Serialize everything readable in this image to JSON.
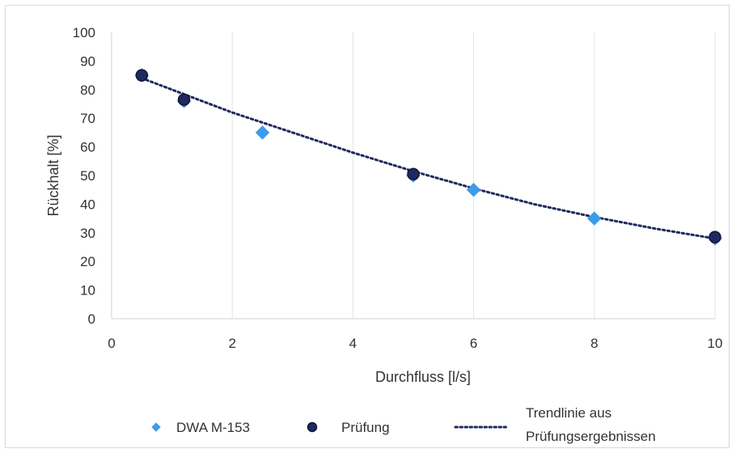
{
  "chart_data": {
    "type": "scatter",
    "xlabel": "Durchfluss [l/s]",
    "ylabel": "Rückhalt [%]",
    "xlim": [
      0,
      10
    ],
    "ylim": [
      0,
      100
    ],
    "x_ticks": [
      "0",
      "2",
      "4",
      "6",
      "8",
      "10"
    ],
    "y_ticks": [
      "0",
      "10",
      "20",
      "30",
      "40",
      "50",
      "60",
      "70",
      "80",
      "90",
      "100"
    ],
    "grid": "vertical",
    "legend_position": "bottom",
    "series": [
      {
        "name": "DWA M-153",
        "marker": "diamond",
        "color": "#3d9be9",
        "points": [
          {
            "x": 0.5,
            "y": 85
          },
          {
            "x": 1.2,
            "y": 76
          },
          {
            "x": 2.5,
            "y": 65
          },
          {
            "x": 5,
            "y": 50
          },
          {
            "x": 6,
            "y": 45
          },
          {
            "x": 8,
            "y": 35
          },
          {
            "x": 10,
            "y": 28
          }
        ]
      },
      {
        "name": "Prüfung",
        "marker": "circle",
        "color": "#1f2a5e",
        "points": [
          {
            "x": 0.5,
            "y": 85
          },
          {
            "x": 1.2,
            "y": 76.5
          },
          {
            "x": 5,
            "y": 50.5
          },
          {
            "x": 10,
            "y": 28.5
          }
        ]
      }
    ],
    "trendline": {
      "name": "Trendlinie aus Prüfungsergebnissen",
      "color": "#1f2a5e",
      "style": "dotted",
      "points": [
        {
          "x": 0.5,
          "y": 84
        },
        {
          "x": 1,
          "y": 80
        },
        {
          "x": 2,
          "y": 72
        },
        {
          "x": 3,
          "y": 65
        },
        {
          "x": 4,
          "y": 58
        },
        {
          "x": 5,
          "y": 51.5
        },
        {
          "x": 6,
          "y": 45.5
        },
        {
          "x": 7,
          "y": 40
        },
        {
          "x": 8,
          "y": 35.5
        },
        {
          "x": 9,
          "y": 31.5
        },
        {
          "x": 10,
          "y": 28
        }
      ]
    },
    "legend": {
      "items": [
        {
          "label": "DWA M-153",
          "marker": "diamond"
        },
        {
          "label": "Prüfung",
          "marker": "circle"
        },
        {
          "label_lines": [
            "Trendlinie aus",
            "Prüfungsergebnissen"
          ],
          "marker": "dotted-line"
        }
      ]
    }
  }
}
